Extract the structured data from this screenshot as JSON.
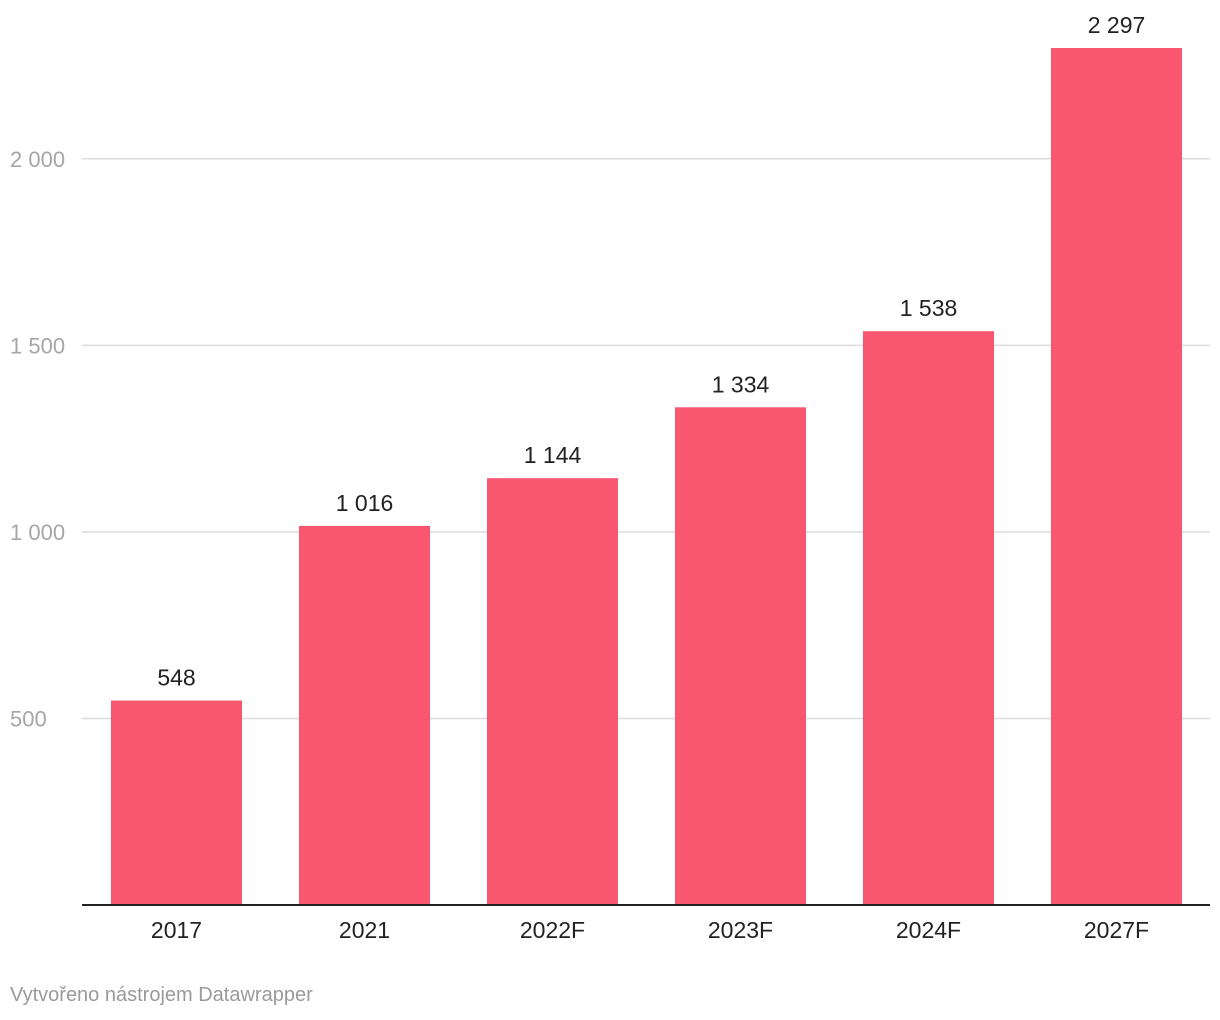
{
  "chart_data": {
    "type": "bar",
    "categories": [
      "2017",
      "2021",
      "2022F",
      "2023F",
      "2024F",
      "2027F"
    ],
    "values": [
      548,
      1016,
      1144,
      1334,
      1538,
      2297
    ],
    "value_labels": [
      "548",
      "1 016",
      "1 144",
      "1 334",
      "1 538",
      "2 297"
    ],
    "yticks": [
      500,
      1000,
      1500,
      2000
    ],
    "ytick_labels": [
      "500",
      "1 000",
      "1 500",
      "2 000"
    ],
    "ylim": [
      0,
      2297
    ],
    "grid": true,
    "title": "",
    "xlabel": "",
    "ylabel": "",
    "bar_color": "#f95670"
  },
  "footer": {
    "credit": "Vytvořeno nástrojem Datawrapper"
  }
}
